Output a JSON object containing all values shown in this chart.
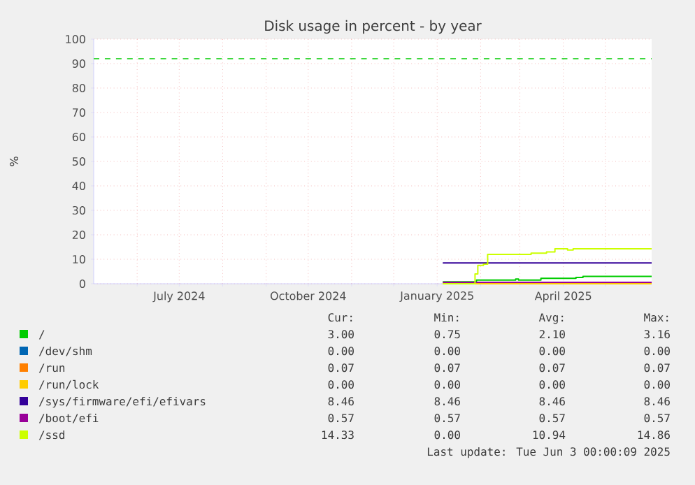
{
  "chart_data": {
    "type": "step",
    "title": "Disk usage in percent - by year",
    "ylabel": "%",
    "xlim": [
      "2024-05-01",
      "2025-06-03"
    ],
    "xticks": [
      {
        "value": "2024-06-01",
        "label": null
      },
      {
        "value": "2024-07-01",
        "label": "July 2024"
      },
      {
        "value": "2024-08-01",
        "label": null
      },
      {
        "value": "2024-09-01",
        "label": null
      },
      {
        "value": "2024-10-01",
        "label": "October 2024"
      },
      {
        "value": "2024-11-01",
        "label": null
      },
      {
        "value": "2024-12-01",
        "label": null
      },
      {
        "value": "2025-01-01",
        "label": "January 2025"
      },
      {
        "value": "2025-02-01",
        "label": null
      },
      {
        "value": "2025-03-01",
        "label": null
      },
      {
        "value": "2025-04-01",
        "label": "April 2025"
      },
      {
        "value": "2025-05-01",
        "label": null
      }
    ],
    "ylim": [
      0,
      100
    ],
    "yticks": [
      0,
      10,
      20,
      30,
      40,
      50,
      60,
      70,
      80,
      90,
      100
    ],
    "grid": true,
    "legend": "bottom",
    "marker": "none",
    "line_style": "solid",
    "ref_lines": [
      {
        "axis": "y",
        "value": 92,
        "color": "#00cc00",
        "line_style": "dashed"
      }
    ],
    "series": [
      {
        "name": "/",
        "color": "#00cc00",
        "x": [
          "2025-01-05",
          "2025-01-29",
          "2025-02-26",
          "2025-02-28",
          "2025-03-16",
          "2025-04-10",
          "2025-04-15",
          "2025-06-03"
        ],
        "values": [
          0.8,
          1.5,
          1.9,
          1.5,
          2.2,
          2.6,
          3.0,
          3.0
        ]
      },
      {
        "name": "/dev/shm",
        "color": "#0066b3",
        "values": [
          null,
          null
        ]
      },
      {
        "name": "/run",
        "color": "#ff8000",
        "values": [
          null,
          null
        ]
      },
      {
        "name": "/run/lock",
        "color": "#ffcc00",
        "x": [
          "2025-01-05",
          "2025-06-03"
        ],
        "values": [
          0.0,
          0.0
        ]
      },
      {
        "name": "/sys/firmware/efi/efivars",
        "color": "#330099",
        "x": [
          "2025-01-05",
          "2025-06-03"
        ],
        "values": [
          8.5,
          8.5
        ]
      },
      {
        "name": "/boot/efi",
        "color": "#990099",
        "x": [
          "2025-01-05",
          "2025-06-03"
        ],
        "values": [
          0.6,
          0.6
        ]
      },
      {
        "name": "/ssd",
        "color": "#ccff00",
        "x": [
          "2025-01-05",
          "2025-01-28",
          "2025-01-30",
          "2025-02-03",
          "2025-02-06",
          "2025-03-09",
          "2025-03-20",
          "2025-03-26",
          "2025-04-04",
          "2025-04-08",
          "2025-06-03"
        ],
        "values": [
          0,
          4,
          7.5,
          8,
          12,
          12.5,
          13,
          14.3,
          13.8,
          14.3,
          14.3
        ]
      }
    ],
    "annotations": [
      "Cur:",
      "Min:",
      "Avg:",
      "Max:",
      "3.00",
      "0.75",
      "2.10",
      "3.16",
      "0.00",
      "0.00",
      "0.00",
      "0.00",
      "0.07",
      "0.07",
      "0.07",
      "0.07",
      "0.00",
      "0.00",
      "0.00",
      "0.00",
      "8.46",
      "8.46",
      "8.46",
      "8.46",
      "0.57",
      "0.57",
      "0.57",
      "0.57",
      "14.33",
      "0.00",
      "10.94",
      "14.86",
      "Last update: Tue Jun  3 00:00:09 2025"
    ]
  }
}
